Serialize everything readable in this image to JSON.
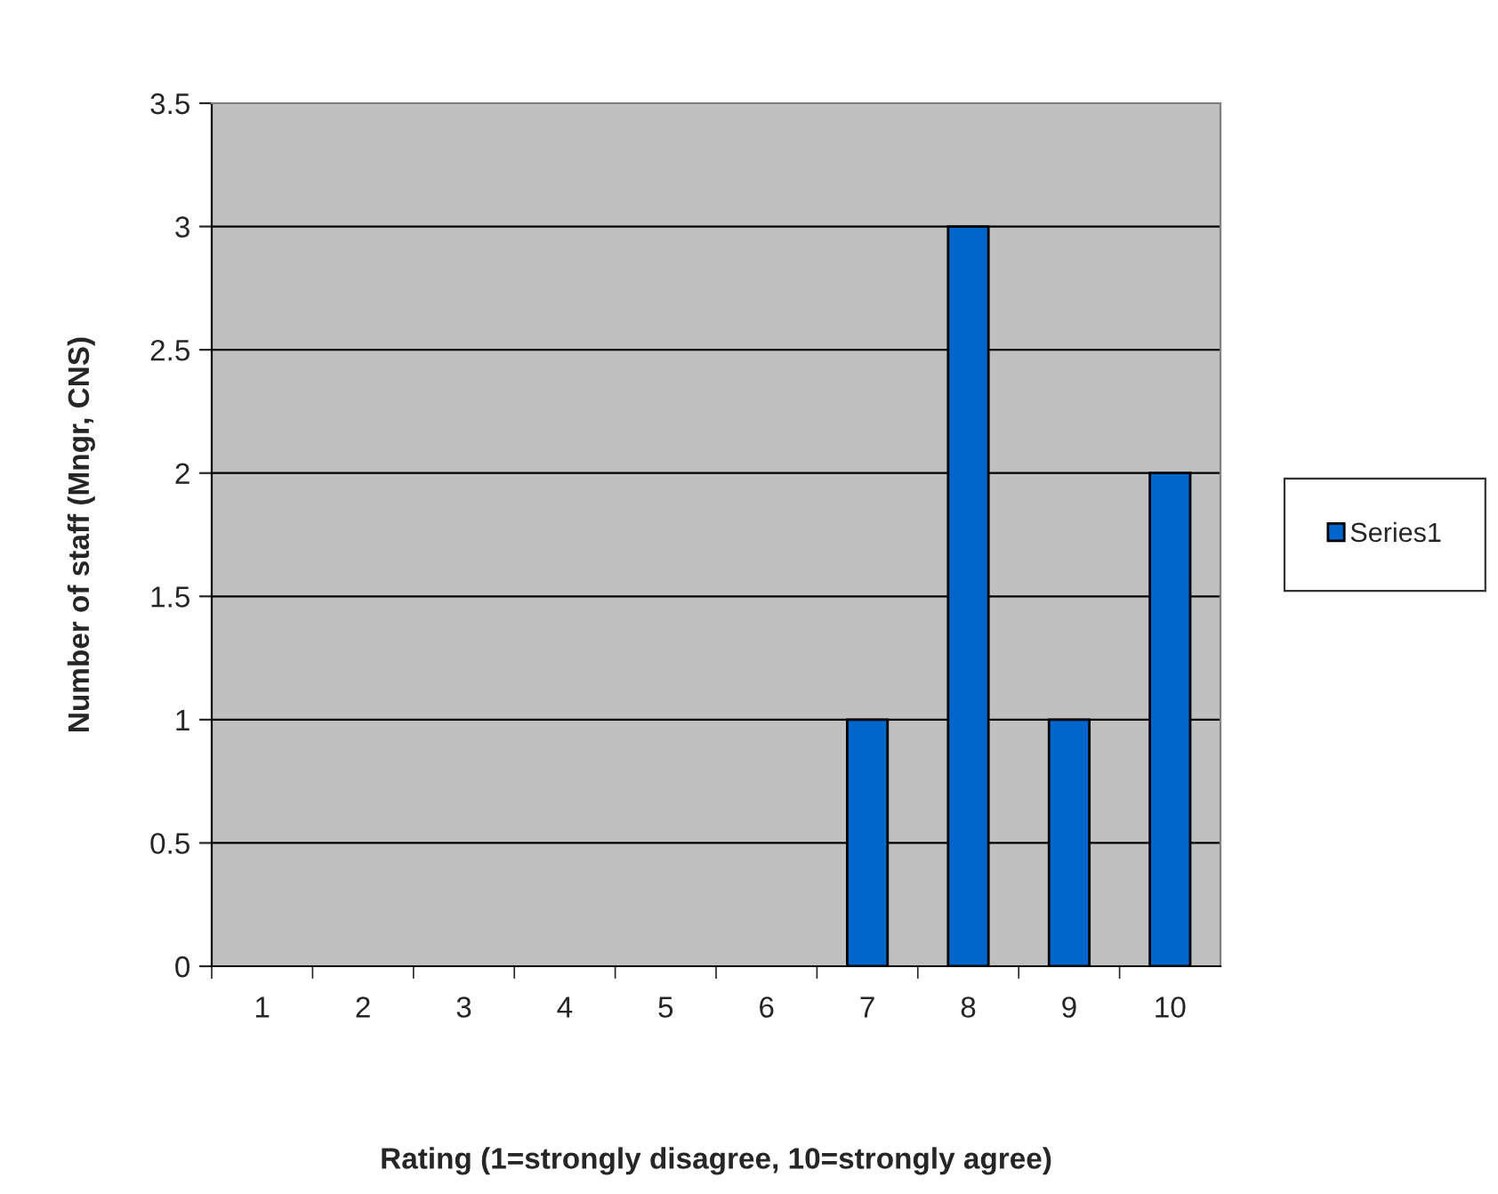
{
  "chart_data": {
    "type": "bar",
    "xlabel": "Rating (1=strongly disagree, 10=strongly agree)",
    "ylabel": "Number of staff (Mngr, CNS)",
    "categories": [
      "1",
      "2",
      "3",
      "4",
      "5",
      "6",
      "7",
      "8",
      "9",
      "10"
    ],
    "series": [
      {
        "name": "Series1",
        "color": "#0066cc",
        "values": [
          0,
          0,
          0,
          0,
          0,
          0,
          1,
          3,
          1,
          2
        ]
      }
    ],
    "ylim": [
      0,
      3.5
    ],
    "yticks": [
      0,
      0.5,
      1,
      1.5,
      2,
      2.5,
      3,
      3.5
    ],
    "grid": "y",
    "legend": "right"
  }
}
